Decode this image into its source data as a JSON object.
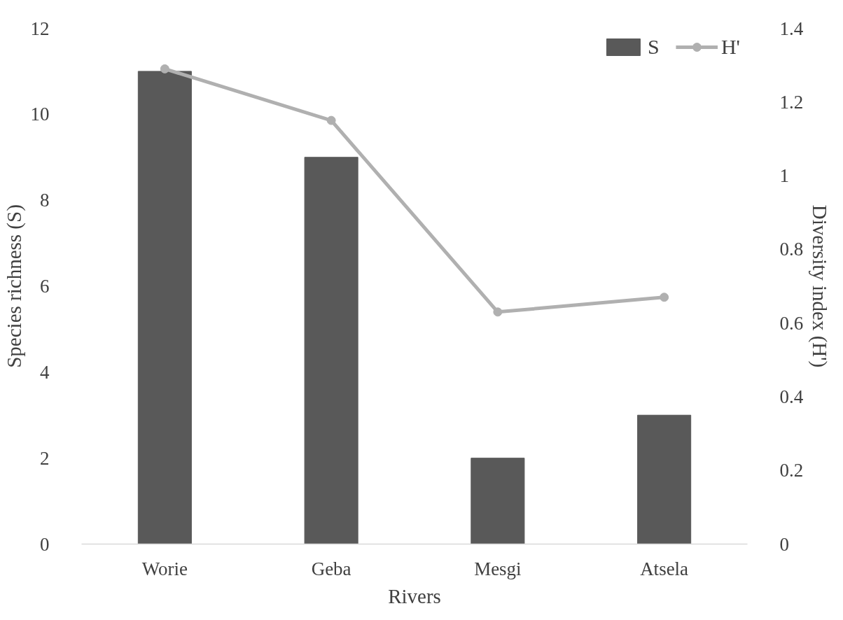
{
  "chart_data": {
    "type": "bar",
    "categories": [
      "Worie",
      "Geba",
      "Mesgi",
      "Atsela"
    ],
    "xlabel": "Rivers",
    "ylabel": "Species richness (S)",
    "y2label": "Diversity index (H')",
    "series": [
      {
        "name": "S",
        "color": "#595959",
        "values": [
          11,
          9,
          2,
          3
        ]
      },
      {
        "name": "H'",
        "type": "line",
        "axis": "y2",
        "color": "#b0b0b0",
        "marker": "circle",
        "values": [
          1.29,
          1.15,
          0.63,
          0.67
        ]
      }
    ],
    "ylim": [
      0,
      12
    ],
    "yticks": [
      0,
      2,
      4,
      6,
      8,
      10,
      12
    ],
    "y2lim": [
      0,
      1.4
    ],
    "y2ticks": [
      0,
      0.2,
      0.4,
      0.6,
      0.8,
      1,
      1.2,
      1.4
    ],
    "grid": false,
    "legend": "top right"
  }
}
